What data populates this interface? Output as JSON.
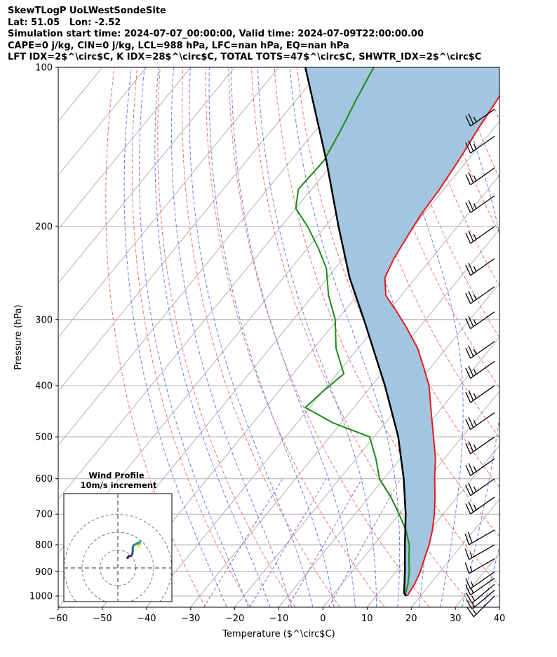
{
  "header": {
    "title": "SkewTLogP UoLWestSondeSite",
    "location": "Lat: 51.05   Lon: -2.52",
    "times": "Simulation start time: 2024-07-07_00:00:00, Valid time: 2024-07-09T22:00:00.00",
    "convection": "CAPE=0 j/kg, CIN=0 j/kg, LCL=988 hPa, LFC=nan hPa, EQ=nan hPa",
    "indices": "LFT IDX=2$^\\circ$C, K IDX=28$^\\circ$C, TOTAL TOTS=47$^\\circ$C, SHWTR_IDX=2$^\\circ$C"
  },
  "chart_data": {
    "type": "skew-t log-p",
    "xlabel": "Temperature ($^\\circ$C)",
    "ylabel": "Pressure (hPa)",
    "xlim": [
      -60,
      40
    ],
    "ylim_hpa": [
      1050,
      100
    ],
    "x_ticks": [
      "−60",
      "−50",
      "−40",
      "−30",
      "−20",
      "−10",
      "0",
      "10",
      "20",
      "30",
      "40"
    ],
    "p_ticks": [
      "1000",
      "900",
      "800",
      "700",
      "600",
      "500",
      "400",
      "300",
      "200",
      "100"
    ],
    "colors": {
      "temperature": "#e41a1c",
      "dewpoint": "#1a8a1a",
      "parcel": "#000000",
      "cape_fill": "#a3c5df",
      "dry_adiabats": "#f07070",
      "moist_adiabats": "#6a7ef0",
      "mixing_ratio": "#9c5ed0",
      "isotherms": "#b0b0b0"
    },
    "temperature_profile": [
      {
        "p": 1000,
        "t": 17.0
      },
      {
        "p": 950,
        "t": 16.5
      },
      {
        "p": 900,
        "t": 15.5
      },
      {
        "p": 850,
        "t": 14.0
      },
      {
        "p": 800,
        "t": 12.5
      },
      {
        "p": 750,
        "t": 10.5
      },
      {
        "p": 700,
        "t": 8.0
      },
      {
        "p": 650,
        "t": 5.0
      },
      {
        "p": 600,
        "t": 1.5
      },
      {
        "p": 550,
        "t": -2.0
      },
      {
        "p": 500,
        "t": -6.5
      },
      {
        "p": 450,
        "t": -11.5
      },
      {
        "p": 400,
        "t": -17.0
      },
      {
        "p": 370,
        "t": -21.5
      },
      {
        "p": 340,
        "t": -26.5
      },
      {
        "p": 310,
        "t": -33.0
      },
      {
        "p": 290,
        "t": -38.0
      },
      {
        "p": 270,
        "t": -43.5
      },
      {
        "p": 250,
        "t": -47.0
      },
      {
        "p": 230,
        "t": -48.5
      },
      {
        "p": 210,
        "t": -49.5
      },
      {
        "p": 190,
        "t": -50.5
      },
      {
        "p": 170,
        "t": -51.0
      },
      {
        "p": 150,
        "t": -52.0
      },
      {
        "p": 130,
        "t": -53.5
      },
      {
        "p": 115,
        "t": -54.5
      },
      {
        "p": 100,
        "t": -56.0
      }
    ],
    "dewpoint_profile": [
      {
        "p": 1000,
        "t": 16.5
      },
      {
        "p": 950,
        "t": 15.0
      },
      {
        "p": 900,
        "t": 13.0
      },
      {
        "p": 850,
        "t": 10.5
      },
      {
        "p": 800,
        "t": 8.0
      },
      {
        "p": 750,
        "t": 4.5
      },
      {
        "p": 700,
        "t": 0.0
      },
      {
        "p": 650,
        "t": -5.0
      },
      {
        "p": 600,
        "t": -11.0
      },
      {
        "p": 550,
        "t": -15.5
      },
      {
        "p": 500,
        "t": -21.0
      },
      {
        "p": 470,
        "t": -32.0
      },
      {
        "p": 440,
        "t": -41.0
      },
      {
        "p": 410,
        "t": -40.0
      },
      {
        "p": 380,
        "t": -38.5
      },
      {
        "p": 340,
        "t": -45.0
      },
      {
        "p": 300,
        "t": -50.5
      },
      {
        "p": 270,
        "t": -56.5
      },
      {
        "p": 240,
        "t": -62.0
      },
      {
        "p": 220,
        "t": -67.5
      },
      {
        "p": 200,
        "t": -74.0
      },
      {
        "p": 185,
        "t": -80.0
      },
      {
        "p": 170,
        "t": -83.0
      },
      {
        "p": 150,
        "t": -82.5
      },
      {
        "p": 130,
        "t": -84.5
      },
      {
        "p": 115,
        "t": -86.5
      },
      {
        "p": 100,
        "t": -88.5
      }
    ],
    "parcel_profile": [
      {
        "p": 1000,
        "t": 16.8
      },
      {
        "p": 988,
        "t": 15.8
      },
      {
        "p": 900,
        "t": 12.0
      },
      {
        "p": 800,
        "t": 7.0
      },
      {
        "p": 700,
        "t": 1.5
      },
      {
        "p": 600,
        "t": -5.5
      },
      {
        "p": 500,
        "t": -14.5
      },
      {
        "p": 400,
        "t": -27.0
      },
      {
        "p": 300,
        "t": -44.0
      },
      {
        "p": 250,
        "t": -55.0
      },
      {
        "p": 200,
        "t": -67.0
      },
      {
        "p": 150,
        "t": -82.0
      },
      {
        "p": 100,
        "t": -104.0
      }
    ],
    "wind_barbs": [
      {
        "p": 1000,
        "dir": 225,
        "speed_kt": 15
      },
      {
        "p": 975,
        "dir": 230,
        "speed_kt": 15
      },
      {
        "p": 950,
        "dir": 230,
        "speed_kt": 15
      },
      {
        "p": 925,
        "dir": 235,
        "speed_kt": 15
      },
      {
        "p": 900,
        "dir": 235,
        "speed_kt": 15
      },
      {
        "p": 850,
        "dir": 240,
        "speed_kt": 15
      },
      {
        "p": 800,
        "dir": 240,
        "speed_kt": 15
      },
      {
        "p": 750,
        "dir": 240,
        "speed_kt": 20
      },
      {
        "p": 650,
        "dir": 235,
        "speed_kt": 25
      },
      {
        "p": 600,
        "dir": 235,
        "speed_kt": 25
      },
      {
        "p": 550,
        "dir": 235,
        "speed_kt": 25
      },
      {
        "p": 500,
        "dir": 235,
        "speed_kt": 25
      },
      {
        "p": 450,
        "dir": 235,
        "speed_kt": 25
      },
      {
        "p": 400,
        "dir": 235,
        "speed_kt": 25
      },
      {
        "p": 360,
        "dir": 235,
        "speed_kt": 25
      },
      {
        "p": 330,
        "dir": 235,
        "speed_kt": 25
      },
      {
        "p": 290,
        "dir": 235,
        "speed_kt": 25
      },
      {
        "p": 260,
        "dir": 235,
        "speed_kt": 25
      },
      {
        "p": 230,
        "dir": 235,
        "speed_kt": 25
      },
      {
        "p": 200,
        "dir": 235,
        "speed_kt": 25
      },
      {
        "p": 175,
        "dir": 235,
        "speed_kt": 25
      },
      {
        "p": 155,
        "dir": 235,
        "speed_kt": 25
      },
      {
        "p": 135,
        "dir": 235,
        "speed_kt": 25
      },
      {
        "p": 120,
        "dir": 235,
        "speed_kt": 25
      }
    ],
    "hodograph": {
      "title": "Wind Profile",
      "subtitle": "10m/s increment",
      "rings_ms": [
        10,
        20,
        30
      ],
      "track_uv": [
        [
          3,
          8
        ],
        [
          3.5,
          9
        ],
        [
          4.5,
          10
        ],
        [
          6,
          10.2
        ],
        [
          7.5,
          11
        ],
        [
          8.5,
          13
        ],
        [
          8.8,
          15.5
        ],
        [
          8.6,
          18.5
        ],
        [
          9.5,
          22
        ],
        [
          12,
          23.5
        ],
        [
          14,
          24.5
        ],
        [
          16,
          25.5
        ],
        [
          17.5,
          27
        ],
        [
          17.2,
          26
        ],
        [
          16.5,
          24
        ],
        [
          15.5,
          22
        ],
        [
          15,
          21.5
        ],
        [
          16,
          21
        ],
        [
          16.5,
          22
        ]
      ],
      "track_colors": [
        "#440154",
        "#46327e",
        "#365c8d",
        "#277f8e",
        "#1fa187",
        "#4ac16d",
        "#a0da39",
        "#fde725"
      ]
    }
  }
}
